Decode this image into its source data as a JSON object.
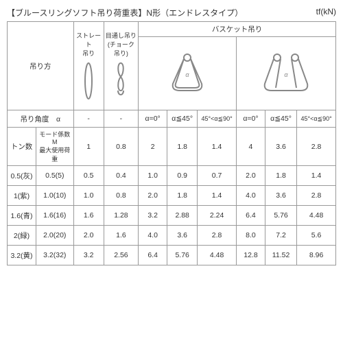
{
  "title_left": "【ブルースリングソフト吊り荷重表】N形（エンドレスタイプ）",
  "title_right": "tf(kN)",
  "header": {
    "method": "吊り方",
    "straight": "ストレート\n吊り",
    "choke": "目通し吊り\n(チョーク吊り)",
    "basket": "バスケット吊り"
  },
  "angle_label": "吊り角度　α",
  "angles": [
    "-",
    "-",
    "α=0°",
    "α≦45°",
    "45°<α≦90°",
    "α=0°",
    "α≦45°",
    "45°<α≦90°"
  ],
  "ton_label": "トン数",
  "mode_label": "モード係数M\n最大使用荷重",
  "mode": [
    "1",
    "0.8",
    "2",
    "1.8",
    "1.4",
    "4",
    "3.6",
    "2.8"
  ],
  "rows": [
    {
      "tag": "0.5(灰)",
      "wl": "0.5(5)",
      "c": [
        "0.5",
        "0.4",
        "1.0",
        "0.9",
        "0.7",
        "2.0",
        "1.8",
        "1.4"
      ]
    },
    {
      "tag": "1(紫)",
      "wl": "1.0(10)",
      "c": [
        "1.0",
        "0.8",
        "2.0",
        "1.8",
        "1.4",
        "4.0",
        "3.6",
        "2.8"
      ]
    },
    {
      "tag": "1.6(青)",
      "wl": "1.6(16)",
      "c": [
        "1.6",
        "1.28",
        "3.2",
        "2.88",
        "2.24",
        "6.4",
        "5.76",
        "4.48"
      ]
    },
    {
      "tag": "2(緑)",
      "wl": "2.0(20)",
      "c": [
        "2.0",
        "1.6",
        "4.0",
        "3.6",
        "2.8",
        "8.0",
        "7.2",
        "5.6"
      ]
    },
    {
      "tag": "3.2(黄)",
      "wl": "3.2(32)",
      "c": [
        "3.2",
        "2.56",
        "6.4",
        "5.76",
        "4.48",
        "12.8",
        "11.52",
        "8.96"
      ]
    }
  ]
}
